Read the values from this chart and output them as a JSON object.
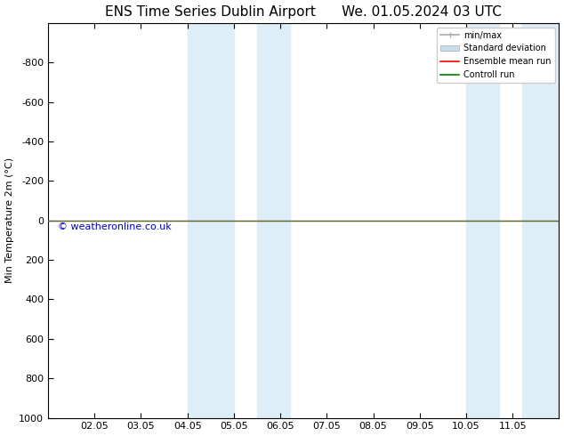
{
  "title": "ENS Time Series Dublin Airport      We. 01.05.2024 03 UTC",
  "ylabel": "Min Temperature 2m (°C)",
  "watermark": "© weatheronline.co.uk",
  "ylim": [
    -1000,
    1000
  ],
  "yticks": [
    -800,
    -600,
    -400,
    -200,
    0,
    200,
    400,
    600,
    800,
    1000
  ],
  "xtick_labels": [
    "02.05",
    "03.05",
    "04.05",
    "05.05",
    "06.05",
    "07.05",
    "08.05",
    "09.05",
    "10.05",
    "11.05"
  ],
  "xtick_positions": [
    1,
    2,
    3,
    4,
    5,
    6,
    7,
    8,
    9,
    10
  ],
  "xlim": [
    0,
    11
  ],
  "shaded_bands": [
    {
      "xmin": 3.0,
      "xmax": 4.0
    },
    {
      "xmin": 4.5,
      "xmax": 5.2
    },
    {
      "xmin": 9.0,
      "xmax": 9.7
    },
    {
      "xmin": 10.2,
      "xmax": 11.0
    }
  ],
  "band_color": "#ddeef8",
  "green_line_y": 0,
  "red_line_y": 0,
  "legend_items": [
    "min/max",
    "Standard deviation",
    "Ensemble mean run",
    "Controll run"
  ],
  "legend_colors": [
    "#aaaaaa",
    "#c8dff0",
    "#ff0000",
    "#008000"
  ],
  "background_color": "#ffffff",
  "title_fontsize": 11,
  "axis_fontsize": 8,
  "watermark_fontsize": 8
}
